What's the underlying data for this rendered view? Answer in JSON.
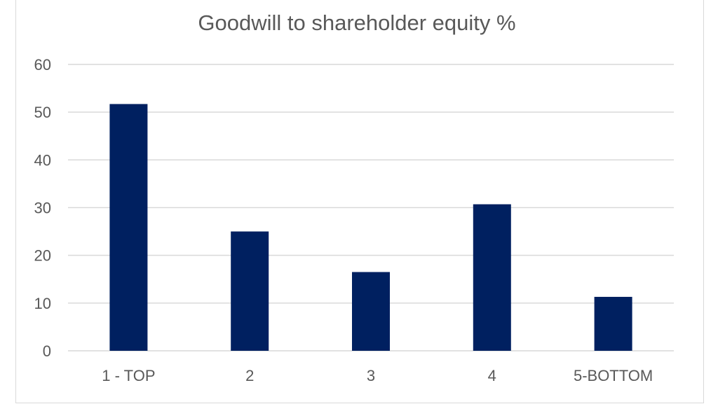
{
  "chart_data": {
    "type": "bar",
    "title": "Goodwill to shareholder equity %",
    "categories": [
      "1 - TOP",
      "2",
      "3",
      "4",
      "5-BOTTOM"
    ],
    "values": [
      51.7,
      25.0,
      16.5,
      30.7,
      11.3
    ],
    "ylim": [
      0,
      60
    ],
    "yticks": [
      0,
      10,
      20,
      30,
      40,
      50,
      60
    ],
    "xlabel": "",
    "ylabel": "",
    "grid": true,
    "legend": "none",
    "bar_color": "#002060"
  }
}
